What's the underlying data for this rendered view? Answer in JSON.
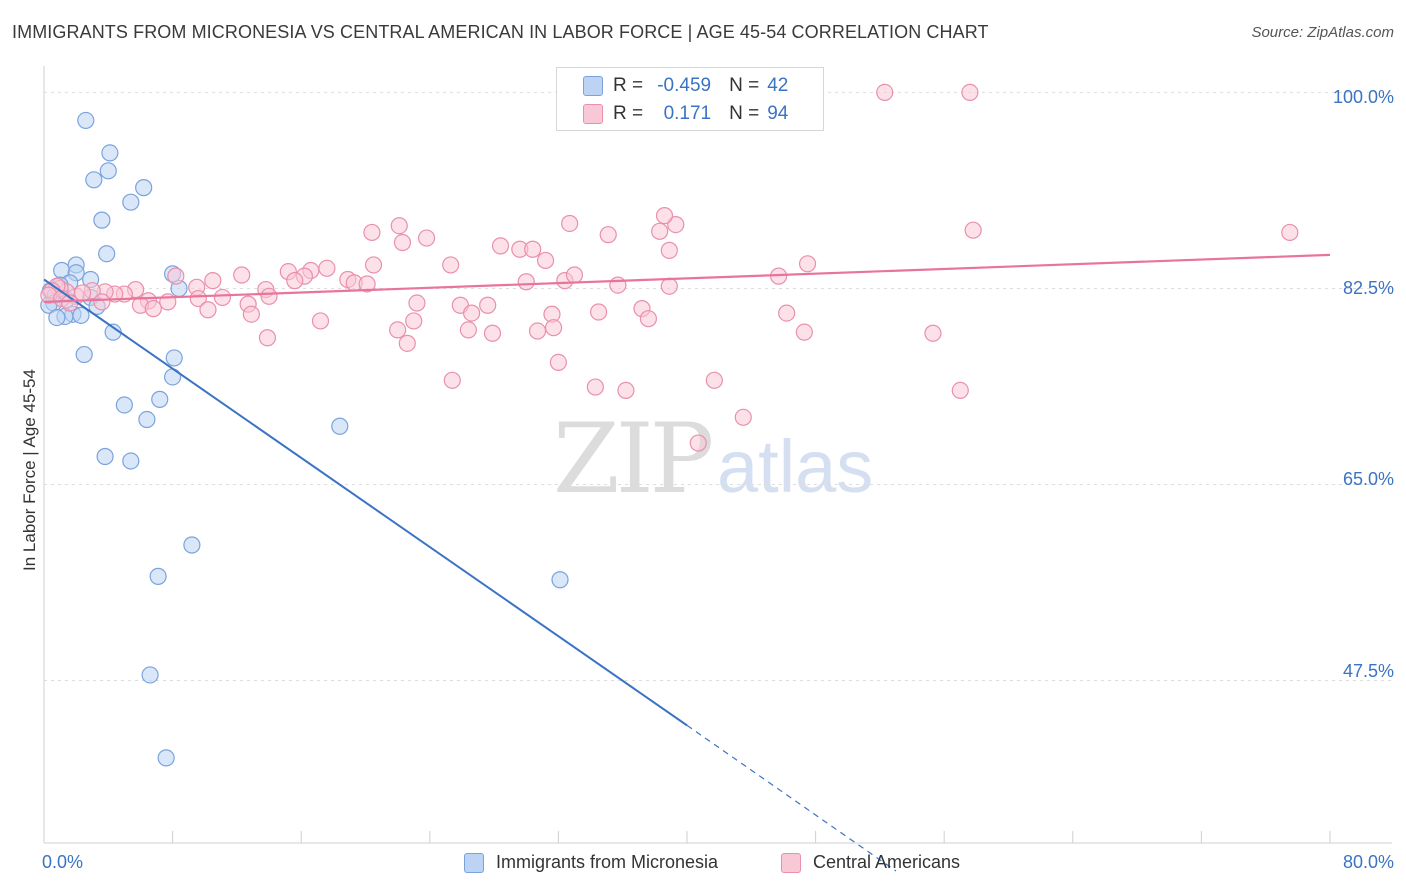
{
  "title": "IMMIGRANTS FROM MICRONESIA VS CENTRAL AMERICAN IN LABOR FORCE | AGE 45-54 CORRELATION CHART",
  "source": "Source: ZipAtlas.com",
  "watermark": {
    "zip": "ZIP",
    "atlas": "atlas"
  },
  "legend_box": {
    "rows": [
      {
        "r_label": "R =",
        "r_value": "-0.459",
        "n_label": "N =",
        "n_value": "42"
      },
      {
        "r_label": "R =",
        "r_value": "0.171",
        "n_label": "N =",
        "n_value": "94"
      }
    ]
  },
  "colors": {
    "blue": "#3b73c4",
    "blue_fill": "#bcd3f3",
    "pink": "#e8749c",
    "pink_fill": "#f9c8d6",
    "grid": "#dddddd"
  },
  "chart_data": {
    "type": "scatter",
    "xlabel": "",
    "ylabel": "In Labor Force | Age 45-54",
    "xlim": [
      0,
      80
    ],
    "ylim": [
      33,
      102
    ],
    "x_tick_labels": [
      "0.0%",
      "80.0%"
    ],
    "y_ticks": [
      47.5,
      65.0,
      82.5,
      100.0
    ],
    "y_tick_labels": [
      "47.5%",
      "65.0%",
      "82.5%",
      "100.0%"
    ],
    "grid": true,
    "legend_position": "bottom",
    "series": [
      {
        "name": "Immigrants from Micronesia",
        "color": "#3b73c4",
        "trend": {
          "x0": 0,
          "y0": 83.3,
          "x1": 40,
          "y1": 43.5,
          "dashed_to_x": 53,
          "dashed_to_y": 30.5
        },
        "points": [
          [
            2.6,
            97.5
          ],
          [
            4.1,
            94.6
          ],
          [
            4.0,
            93.0
          ],
          [
            3.1,
            92.2
          ],
          [
            6.2,
            91.5
          ],
          [
            5.4,
            90.2
          ],
          [
            3.6,
            88.6
          ],
          [
            3.9,
            85.6
          ],
          [
            2.0,
            84.6
          ],
          [
            1.1,
            84.1
          ],
          [
            2.0,
            83.9
          ],
          [
            8.0,
            83.8
          ],
          [
            2.9,
            83.3
          ],
          [
            1.6,
            83.0
          ],
          [
            8.4,
            82.5
          ],
          [
            0.4,
            82.3
          ],
          [
            0.7,
            81.9
          ],
          [
            2.9,
            81.7
          ],
          [
            1.4,
            81.5
          ],
          [
            0.6,
            81.2
          ],
          [
            0.3,
            81.0
          ],
          [
            3.3,
            80.9
          ],
          [
            1.8,
            80.2
          ],
          [
            2.3,
            80.1
          ],
          [
            1.3,
            80.0
          ],
          [
            0.8,
            79.9
          ],
          [
            4.3,
            78.6
          ],
          [
            2.5,
            76.6
          ],
          [
            8.1,
            76.3
          ],
          [
            8.0,
            74.6
          ],
          [
            7.2,
            72.6
          ],
          [
            5.0,
            72.1
          ],
          [
            6.4,
            70.8
          ],
          [
            18.4,
            70.2
          ],
          [
            3.8,
            67.5
          ],
          [
            5.4,
            67.1
          ],
          [
            9.2,
            59.6
          ],
          [
            7.1,
            56.8
          ],
          [
            32.1,
            56.5
          ],
          [
            6.6,
            48.0
          ],
          [
            7.6,
            40.6
          ],
          [
            1.0,
            82.8
          ]
        ]
      },
      {
        "name": "Central Americans",
        "color": "#e8749c",
        "trend": {
          "x0": 0,
          "y0": 81.3,
          "x1": 80,
          "y1": 85.5
        },
        "points": [
          [
            52.3,
            100.0
          ],
          [
            57.6,
            100.0
          ],
          [
            43.1,
            100.0
          ],
          [
            32.7,
            88.3
          ],
          [
            39.3,
            88.2
          ],
          [
            22.1,
            88.1
          ],
          [
            20.4,
            87.5
          ],
          [
            35.1,
            87.3
          ],
          [
            23.8,
            87.0
          ],
          [
            57.8,
            87.7
          ],
          [
            77.5,
            87.5
          ],
          [
            38.6,
            89.0
          ],
          [
            38.3,
            87.6
          ],
          [
            28.4,
            86.3
          ],
          [
            29.6,
            86.0
          ],
          [
            22.3,
            86.6
          ],
          [
            30.4,
            86.0
          ],
          [
            38.9,
            85.9
          ],
          [
            31.2,
            85.0
          ],
          [
            47.5,
            84.7
          ],
          [
            25.3,
            84.6
          ],
          [
            20.5,
            84.6
          ],
          [
            17.6,
            84.3
          ],
          [
            16.6,
            84.1
          ],
          [
            15.2,
            84.0
          ],
          [
            16.2,
            83.6
          ],
          [
            12.3,
            83.7
          ],
          [
            8.2,
            83.6
          ],
          [
            15.6,
            83.2
          ],
          [
            18.9,
            83.3
          ],
          [
            19.3,
            83.0
          ],
          [
            20.1,
            82.9
          ],
          [
            30.0,
            83.1
          ],
          [
            32.4,
            83.2
          ],
          [
            33.0,
            83.7
          ],
          [
            35.7,
            82.8
          ],
          [
            38.9,
            82.7
          ],
          [
            45.7,
            83.6
          ],
          [
            10.5,
            83.2
          ],
          [
            9.5,
            82.6
          ],
          [
            13.8,
            82.4
          ],
          [
            5.7,
            82.4
          ],
          [
            5.0,
            82.0
          ],
          [
            4.4,
            82.0
          ],
          [
            3.8,
            82.2
          ],
          [
            3.0,
            82.3
          ],
          [
            2.0,
            81.8
          ],
          [
            2.4,
            82.1
          ],
          [
            1.4,
            82.2
          ],
          [
            1.0,
            82.5
          ],
          [
            0.8,
            82.7
          ],
          [
            0.5,
            82.3
          ],
          [
            0.3,
            81.9
          ],
          [
            1.1,
            81.6
          ],
          [
            1.6,
            81.2
          ],
          [
            3.6,
            81.3
          ],
          [
            6.5,
            81.4
          ],
          [
            7.7,
            81.3
          ],
          [
            9.6,
            81.6
          ],
          [
            11.1,
            81.7
          ],
          [
            14.0,
            81.8
          ],
          [
            12.7,
            81.1
          ],
          [
            6.0,
            81.0
          ],
          [
            6.8,
            80.7
          ],
          [
            10.2,
            80.6
          ],
          [
            12.9,
            80.2
          ],
          [
            17.2,
            79.6
          ],
          [
            23.2,
            81.2
          ],
          [
            25.9,
            81.0
          ],
          [
            27.6,
            81.0
          ],
          [
            26.6,
            80.3
          ],
          [
            31.6,
            80.2
          ],
          [
            34.5,
            80.4
          ],
          [
            37.2,
            80.7
          ],
          [
            37.6,
            79.8
          ],
          [
            46.2,
            80.3
          ],
          [
            23.0,
            79.6
          ],
          [
            22.0,
            78.8
          ],
          [
            26.4,
            78.8
          ],
          [
            27.9,
            78.5
          ],
          [
            30.7,
            78.7
          ],
          [
            31.7,
            79.0
          ],
          [
            47.3,
            78.6
          ],
          [
            55.3,
            78.5
          ],
          [
            13.9,
            78.1
          ],
          [
            22.6,
            77.6
          ],
          [
            32.0,
            75.9
          ],
          [
            25.4,
            74.3
          ],
          [
            34.3,
            73.7
          ],
          [
            36.2,
            73.4
          ],
          [
            41.7,
            74.3
          ],
          [
            57.0,
            73.4
          ],
          [
            43.5,
            71.0
          ],
          [
            40.7,
            68.7
          ]
        ]
      }
    ]
  }
}
